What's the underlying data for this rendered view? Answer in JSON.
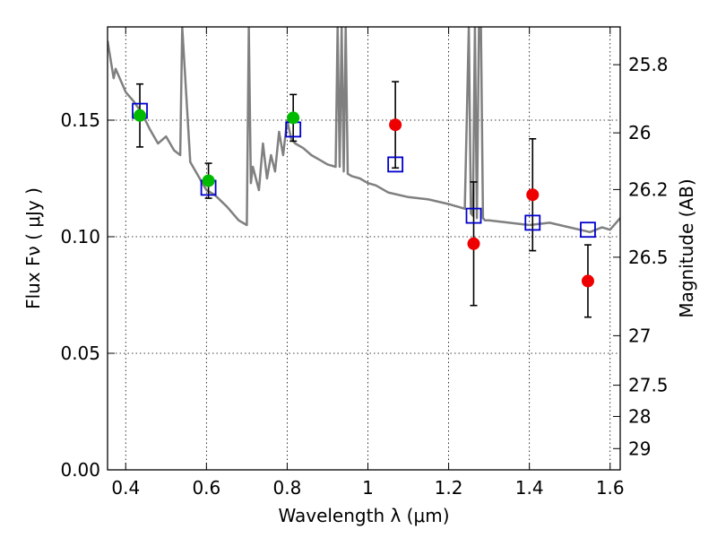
{
  "chart_data": {
    "type": "scatter",
    "xlabel": "Wavelength  λ (μm)",
    "ylabel": "Flux  Fν  ( μJy )",
    "y2label": "Magnitude (AB)",
    "xlim": [
      0.355,
      1.625
    ],
    "ylim": [
      0.0,
      0.19
    ],
    "x_ticks": [
      {
        "value": 0.4,
        "label": "0.4"
      },
      {
        "value": 0.6,
        "label": "0.6"
      },
      {
        "value": 0.8,
        "label": "0.8"
      },
      {
        "value": 1.0,
        "label": "1"
      },
      {
        "value": 1.2,
        "label": "1.2"
      },
      {
        "value": 1.4,
        "label": "1.4"
      },
      {
        "value": 1.6,
        "label": "1.6"
      }
    ],
    "y_ticks": [
      {
        "value": 0.0,
        "label": "0.00"
      },
      {
        "value": 0.05,
        "label": "0.05"
      },
      {
        "value": 0.1,
        "label": "0.10"
      },
      {
        "value": 0.15,
        "label": "0.15"
      }
    ],
    "y2_ticks": [
      {
        "value": 25.8,
        "label": "25.8"
      },
      {
        "value": 26.0,
        "label": "26"
      },
      {
        "value": 26.2,
        "label": "26.2"
      },
      {
        "value": 26.5,
        "label": "26.5"
      },
      {
        "value": 27.0,
        "label": "27"
      },
      {
        "value": 27.5,
        "label": "27.5"
      },
      {
        "value": 28.0,
        "label": "28"
      },
      {
        "value": 29.0,
        "label": "29"
      }
    ],
    "grid": true,
    "colors": {
      "spectrum": "#808080",
      "model": "#0000cc",
      "optical": "#00bb00",
      "infrared": "#ee0000",
      "errorbar": "#000000",
      "grid": "#000000"
    },
    "spectrum": {
      "x": [
        0.355,
        0.37,
        0.375,
        0.39,
        0.4,
        0.42,
        0.44,
        0.46,
        0.48,
        0.5,
        0.52,
        0.535,
        0.54,
        0.56,
        0.58,
        0.6,
        0.62,
        0.65,
        0.68,
        0.7,
        0.705,
        0.71,
        0.715,
        0.73,
        0.74,
        0.75,
        0.76,
        0.77,
        0.78,
        0.79,
        0.8,
        0.81,
        0.82,
        0.84,
        0.86,
        0.88,
        0.9,
        0.92,
        0.925,
        0.93,
        0.935,
        0.94,
        0.945,
        0.95,
        0.96,
        0.98,
        1.0,
        1.02,
        1.05,
        1.1,
        1.15,
        1.2,
        1.24,
        1.25,
        1.255,
        1.26,
        1.265,
        1.27,
        1.275,
        1.28,
        1.285,
        1.29,
        1.3,
        1.35,
        1.4,
        1.45,
        1.5,
        1.55,
        1.58,
        1.6,
        1.625
      ],
      "y": [
        0.184,
        0.168,
        0.172,
        0.166,
        0.162,
        0.158,
        0.153,
        0.146,
        0.14,
        0.143,
        0.137,
        0.135,
        0.19,
        0.132,
        0.126,
        0.12,
        0.118,
        0.113,
        0.107,
        0.105,
        0.19,
        0.123,
        0.13,
        0.12,
        0.14,
        0.125,
        0.135,
        0.128,
        0.145,
        0.135,
        0.15,
        0.142,
        0.14,
        0.138,
        0.135,
        0.133,
        0.131,
        0.13,
        0.19,
        0.13,
        0.19,
        0.128,
        0.19,
        0.127,
        0.126,
        0.125,
        0.123,
        0.122,
        0.119,
        0.117,
        0.116,
        0.114,
        0.112,
        0.19,
        0.11,
        0.109,
        0.19,
        0.108,
        0.19,
        0.19,
        0.108,
        0.107,
        0.107,
        0.106,
        0.105,
        0.106,
        0.104,
        0.102,
        0.104,
        0.103,
        0.108
      ]
    },
    "series": [
      {
        "marker": "open-square",
        "x": [
          0.435,
          0.605,
          0.815,
          1.068,
          1.262,
          1.408,
          1.545
        ],
        "y": [
          0.154,
          0.121,
          0.146,
          0.131,
          0.109,
          0.106,
          0.103
        ]
      },
      {
        "marker": "filled-circle-green",
        "x": [
          0.435,
          0.605,
          0.815
        ],
        "y": [
          0.152,
          0.124,
          0.151
        ],
        "err": [
          0.0135,
          0.0075,
          0.01
        ]
      },
      {
        "marker": "filled-circle-red",
        "x": [
          1.068,
          1.262,
          1.408,
          1.545
        ],
        "y": [
          0.148,
          0.097,
          0.118,
          0.081
        ],
        "err": [
          0.0185,
          0.0265,
          0.024,
          0.0155
        ]
      }
    ]
  }
}
